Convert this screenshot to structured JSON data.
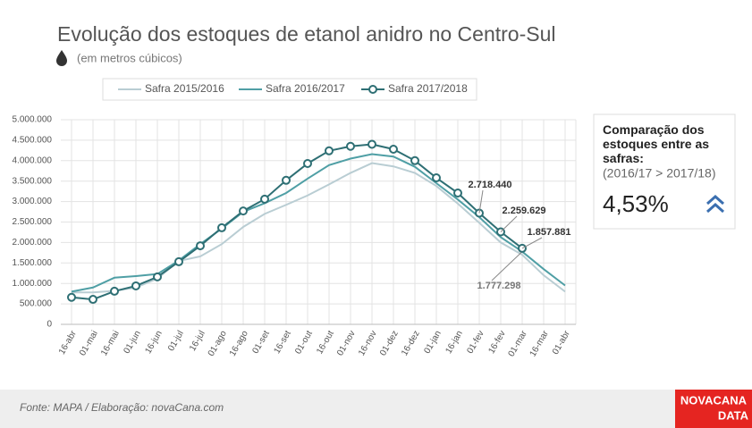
{
  "chart_data": {
    "type": "line",
    "title": "Evolução dos estoques de etanol anidro no Centro-Sul",
    "subtitle": "(em metros cúbicos)",
    "categories": [
      "16-abr",
      "01-mai",
      "16-mai",
      "01-jun",
      "16-jun",
      "01-jul",
      "16-jul",
      "01-ago",
      "16-ago",
      "01-set",
      "16-set",
      "01-out",
      "16-out",
      "01-nov",
      "16-nov",
      "01-dez",
      "16-dez",
      "01-jan",
      "16-jan",
      "01-fev",
      "16-fev",
      "01-mar",
      "16-mar",
      "01-abr"
    ],
    "series": [
      {
        "name": "Safra 2015/2016",
        "color": "#b9cdd3",
        "marker": false,
        "values": [
          780000,
          780000,
          820000,
          900000,
          1120000,
          1550000,
          1660000,
          1960000,
          2380000,
          2700000,
          2920000,
          3150000,
          3420000,
          3700000,
          3940000,
          3860000,
          3700000,
          3380000,
          2950000,
          2480000,
          2000000,
          1700000,
          1200000,
          800000
        ]
      },
      {
        "name": "Safra 2016/2017",
        "color": "#4f9fa5",
        "marker": false,
        "values": [
          800000,
          900000,
          1140000,
          1180000,
          1230000,
          1560000,
          1960000,
          2340000,
          2750000,
          2960000,
          3210000,
          3560000,
          3890000,
          4050000,
          4160000,
          4100000,
          3850000,
          3450000,
          3050000,
          2620000,
          2130000,
          1777298,
          1350000,
          950000
        ],
        "value_labels": [
          null,
          null,
          null,
          null,
          null,
          null,
          null,
          null,
          null,
          null,
          null,
          null,
          null,
          null,
          null,
          null,
          null,
          null,
          null,
          null,
          null,
          "1.777.298",
          null,
          null
        ]
      },
      {
        "name": "Safra 2017/2018",
        "color": "#2e6f74",
        "marker": true,
        "values": [
          660000,
          610000,
          810000,
          940000,
          1160000,
          1530000,
          1920000,
          2360000,
          2770000,
          3060000,
          3520000,
          3930000,
          4240000,
          4350000,
          4400000,
          4280000,
          4000000,
          3580000,
          3210000,
          2718440,
          2259629,
          1857881,
          null,
          null
        ],
        "value_labels": [
          null,
          null,
          null,
          null,
          null,
          null,
          null,
          null,
          null,
          null,
          null,
          null,
          null,
          null,
          null,
          null,
          null,
          null,
          null,
          "2.718.440",
          "2.259.629",
          "1.857.881",
          null,
          null
        ]
      }
    ],
    "ylim": [
      0,
      5000000
    ],
    "yticks": [
      0,
      {
        "value": 500000,
        "label": "500.000"
      },
      {
        "value": 1000000,
        "label": "1.000.000"
      },
      {
        "value": 1500000,
        "label": "1.500.000"
      },
      {
        "value": 2000000,
        "label": "2.000.000"
      },
      {
        "value": 2500000,
        "label": "2.500.000"
      },
      {
        "value": 3000000,
        "label": "3.000.000"
      },
      {
        "value": 3500000,
        "label": "3.500.000"
      },
      {
        "value": 4000000,
        "label": "4.000.000"
      },
      {
        "value": 4500000,
        "label": "4.500.000"
      },
      {
        "value": 5000000,
        "label": "5.000.000"
      }
    ],
    "grid": true,
    "legend": "top"
  },
  "panel": {
    "heading": "Comparação dos estoques entre as safras:",
    "subheading": "(2016/17 > 2017/18)",
    "value": "4,53%"
  },
  "footer": {
    "source": "Fonte: MAPA  / Elaboração: novaCana.com",
    "logo_top": "NOVACANA",
    "logo_bottom": "DATA"
  }
}
